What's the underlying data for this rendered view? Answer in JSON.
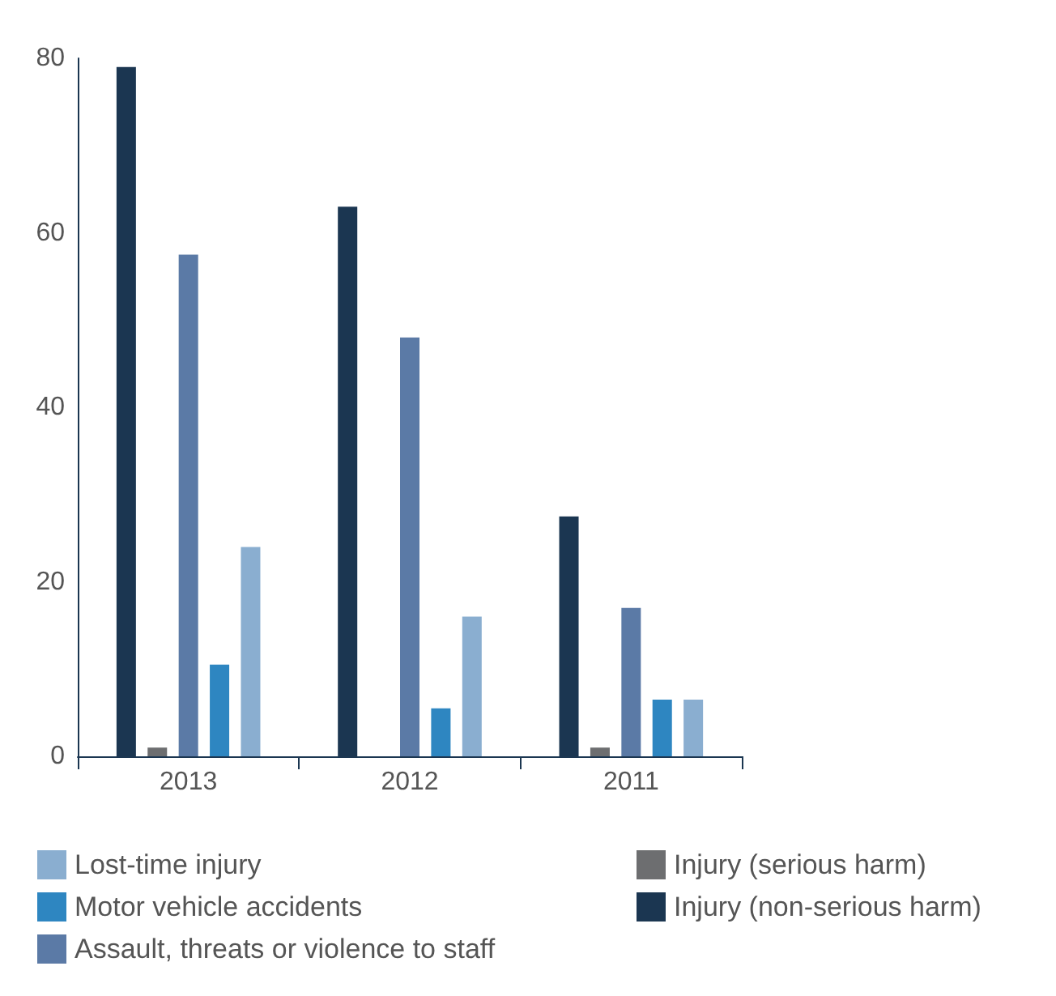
{
  "chart_data": {
    "type": "bar",
    "categories": [
      "2013",
      "2012",
      "2011"
    ],
    "series": [
      {
        "name": "Injury (non-serious harm)",
        "color": "#1b3651",
        "values": [
          79,
          63,
          27.5
        ]
      },
      {
        "name": "Injury (serious harm)",
        "color": "#6d6e70",
        "values": [
          1,
          0,
          1
        ]
      },
      {
        "name": "Assault, threats or violence to staff",
        "color": "#5b7aa6",
        "values": [
          57.5,
          48,
          17
        ]
      },
      {
        "name": "Motor vehicle accidents",
        "color": "#2e86c1",
        "values": [
          10.5,
          5.5,
          6.5
        ]
      },
      {
        "name": "Lost-time injury",
        "color": "#8aaed0",
        "values": [
          24,
          16,
          6.5
        ]
      }
    ],
    "ylim": [
      0,
      80
    ],
    "yticks": [
      0,
      20,
      40,
      60,
      80
    ],
    "grid": false,
    "legend": "bottom"
  }
}
